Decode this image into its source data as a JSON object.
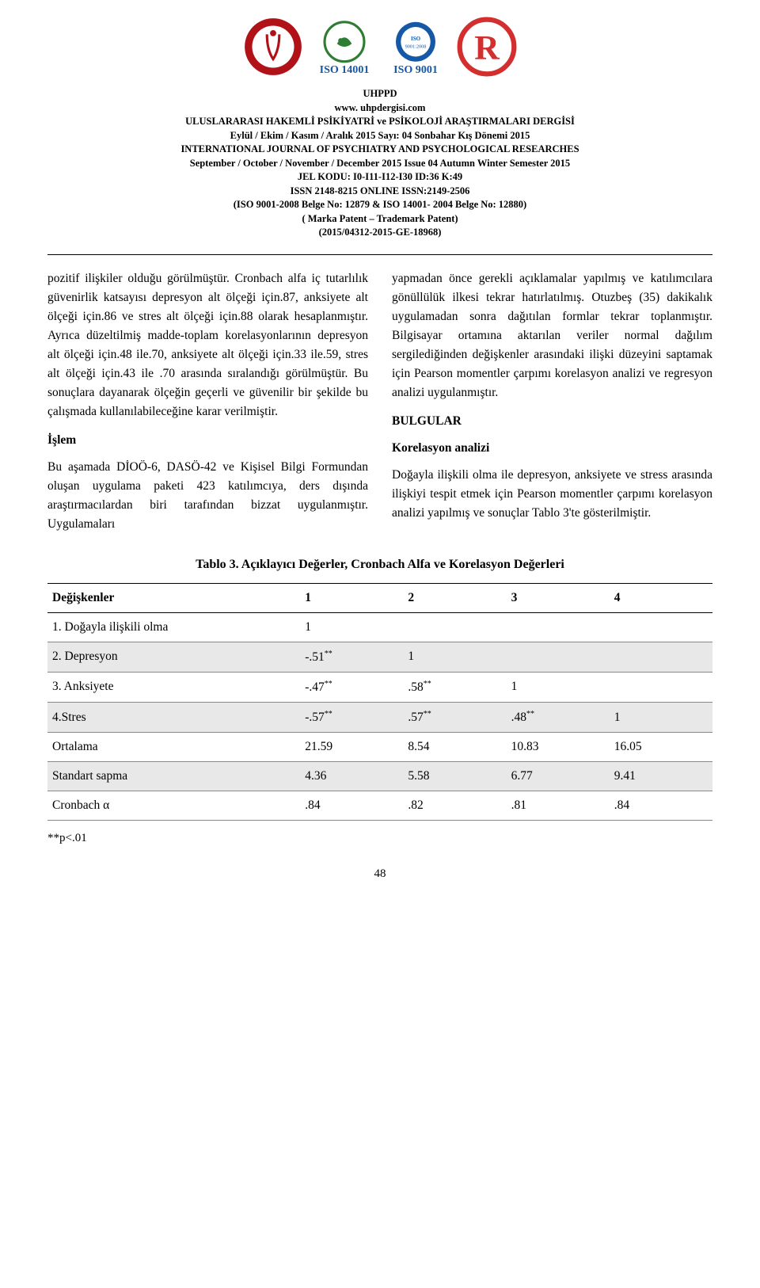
{
  "header": {
    "org": "UHPPD",
    "site": "www. uhpdergisi.com",
    "journal_tr": "ULUSLARARASI HAKEMLİ PSİKİYATRİ ve PSİKOLOJİ ARAŞTIRMALARI DERGİSİ",
    "issue_tr": "Eylül / Ekim / Kasım / Aralık 2015 Sayı: 04 Sonbahar Kış Dönemi 2015",
    "journal_en": "INTERNATIONAL JOURNAL OF PSYCHIATRY AND PSYCHOLOGICAL RESEARCHES",
    "issue_en": "September / October / November / December 2015 Issue 04 Autumn Winter Semester 2015",
    "jel": "JEL KODU: I0-I11-I12-I30 ID:36 K:49",
    "issn": "ISSN 2148-8215 ONLINE ISSN:2149-2506",
    "iso": "(ISO 9001-2008 Belge No: 12879 & ISO 14001- 2004 Belge No: 12880)",
    "patent": "( Marka Patent – Trademark Patent)",
    "reg": "(2015/04312-2015-GE-18968)"
  },
  "body": {
    "left": {
      "p1": "pozitif ilişkiler olduğu görülmüştür. Cronbach alfa iç tutarlılık güvenirlik katsayısı depresyon alt ölçeği için.87, anksiyete alt ölçeği için.86 ve stres alt ölçeği için.88 olarak hesaplanmıştır. Ayrıca düzeltilmiş madde-toplam korelasyonlarının depresyon alt ölçeği için.48 ile.70, anksiyete alt ölçeği için.33 ile.59, stres alt ölçeği için.43 ile .70 arasında sıralandığı görülmüştür. Bu sonuçlara dayanarak ölçeğin geçerli ve güvenilir bir şekilde bu çalışmada kullanılabileceğine karar verilmiştir.",
      "h1": "İşlem",
      "p2": "Bu aşamada DİOÖ-6, DASÖ-42 ve Kişisel Bilgi Formundan oluşan uygulama paketi 423 katılımcıya, ders dışında araştırmacılardan biri tarafından bizzat uygulanmıştır. Uygulamaları"
    },
    "right": {
      "p1": "yapmadan önce gerekli açıklamalar yapılmış ve katılımcılara gönüllülük ilkesi tekrar hatırlatılmış. Otuzbeş (35) dakikalık uygulamadan sonra dağıtılan formlar tekrar toplanmıştır. Bilgisayar ortamına aktarılan veriler normal dağılım sergilediğinden değişkenler arasındaki ilişki düzeyini saptamak için Pearson momentler çarpımı korelasyon analizi ve regresyon analizi uygulanmıştır.",
      "h1": "BULGULAR",
      "h2": "Korelasyon analizi",
      "p2": "Doğayla ilişkili olma ile depresyon, anksiyete ve stress arasında ilişkiyi tespit etmek için Pearson momentler çarpımı korelasyon analizi yapılmış ve sonuçlar Tablo 3'te gösterilmiştir."
    }
  },
  "table": {
    "title": "Tablo 3. Açıklayıcı Değerler, Cronbach Alfa ve Korelasyon Değerleri",
    "head": {
      "c0": "Değişkenler",
      "c1": "1",
      "c2": "2",
      "c3": "3",
      "c4": "4"
    },
    "rows": [
      {
        "shaded": false,
        "var": "1. Doğayla ilişkili olma",
        "v": [
          "1",
          "",
          "",
          ""
        ]
      },
      {
        "shaded": true,
        "var": "2. Depresyon",
        "v": [
          "-.51**",
          "1",
          "",
          ""
        ]
      },
      {
        "shaded": false,
        "var": "3. Anksiyete",
        "v": [
          "-.47**",
          ".58**",
          "1",
          ""
        ]
      },
      {
        "shaded": true,
        "var": "4.Stres",
        "v": [
          "-.57**",
          ".57**",
          ".48**",
          "1"
        ]
      },
      {
        "shaded": false,
        "var": "Ortalama",
        "v": [
          "21.59",
          "8.54",
          "10.83",
          "16.05"
        ]
      },
      {
        "shaded": true,
        "var": "Standart sapma",
        "v": [
          "4.36",
          "5.58",
          "6.77",
          "9.41"
        ]
      },
      {
        "shaded": false,
        "var": "Cronbach α",
        "v": [
          ".84",
          ".82",
          ".81",
          ".84"
        ]
      }
    ],
    "footnote": "**p<.01"
  },
  "pagenum": "48",
  "colors": {
    "text": "#000000",
    "bg": "#ffffff",
    "shade": "#e8e8e8",
    "rule": "#888888"
  }
}
